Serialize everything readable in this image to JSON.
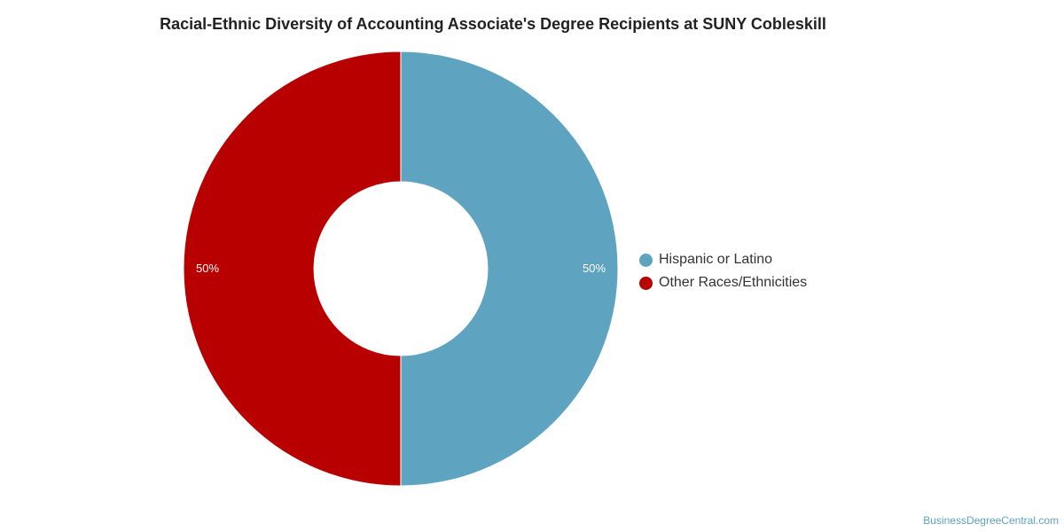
{
  "chart_data": {
    "type": "pie",
    "title": "Racial-Ethnic Diversity of Accounting Associate's Degree Recipients at SUNY Cobleskill",
    "series": [
      {
        "name": "Hispanic or Latino",
        "value": 50,
        "label": "50%",
        "color": "#5ea3c0"
      },
      {
        "name": "Other Races/Ethnicities",
        "value": 50,
        "label": "50%",
        "color": "#b90000"
      }
    ],
    "legend_position": "right"
  },
  "watermark": "BusinessDegreeCentral.com"
}
